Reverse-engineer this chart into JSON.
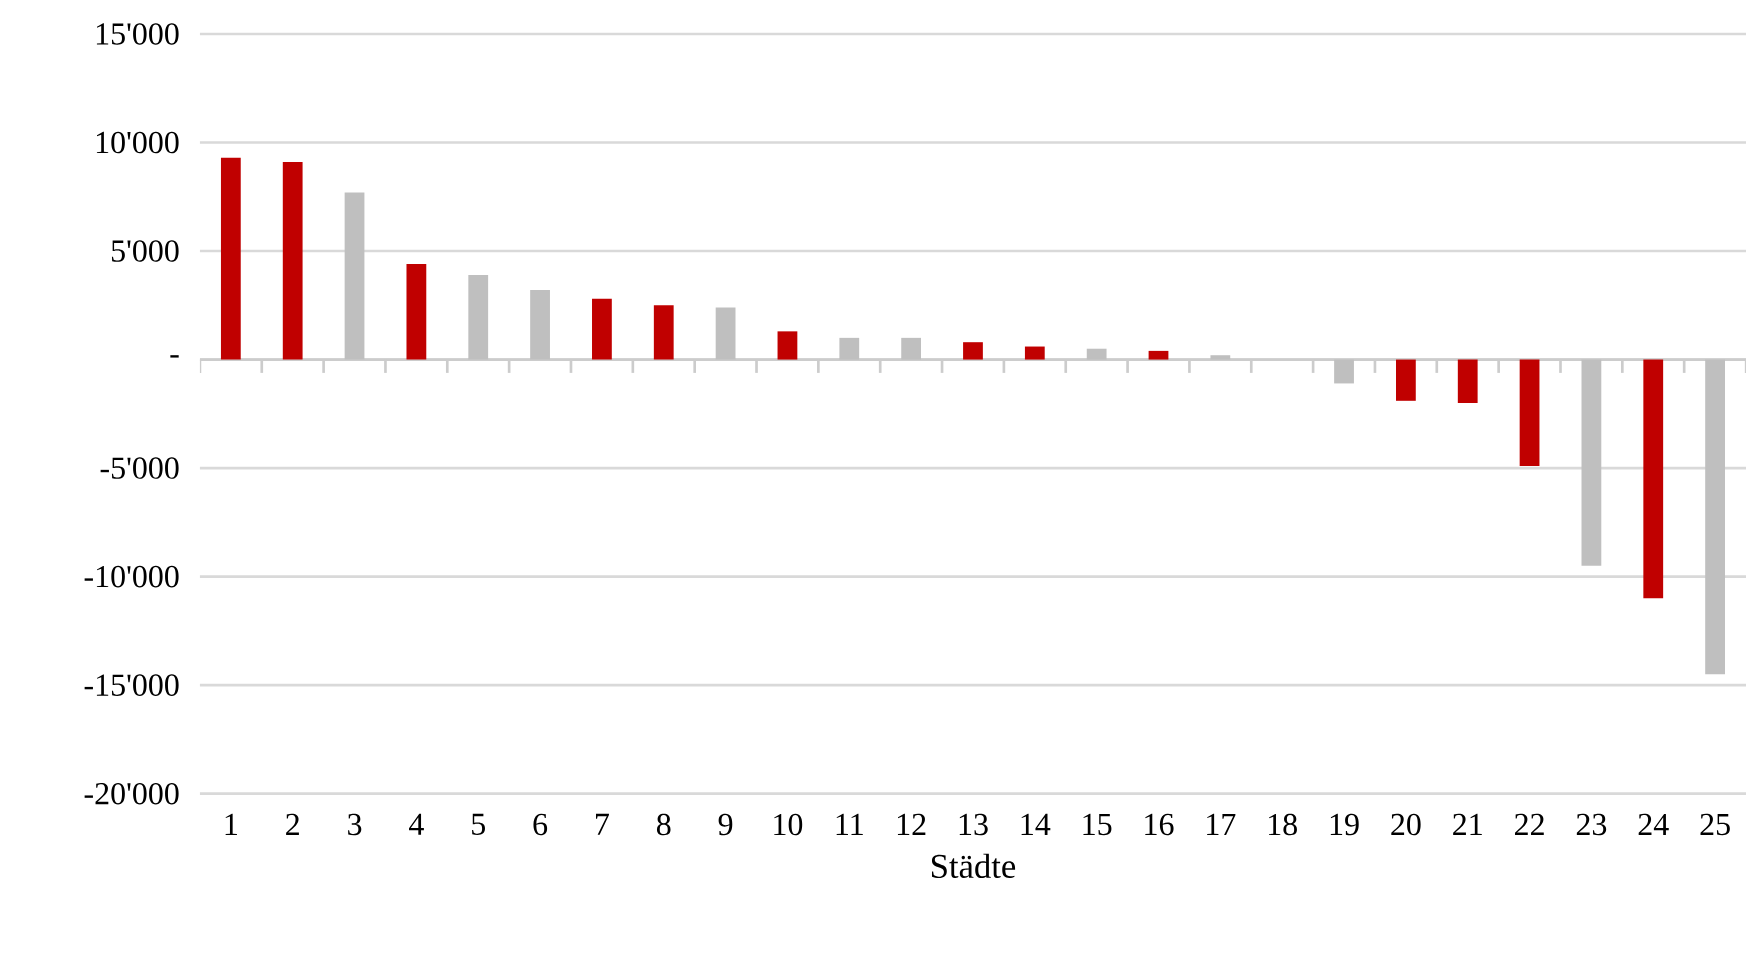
{
  "chart_data": {
    "type": "bar",
    "xlabel": "Städte",
    "categories": [
      "1",
      "2",
      "3",
      "4",
      "5",
      "6",
      "7",
      "8",
      "9",
      "10",
      "11",
      "12",
      "13",
      "14",
      "15",
      "16",
      "17",
      "18",
      "19",
      "20",
      "21",
      "22",
      "23",
      "24",
      "25"
    ],
    "values": [
      9300,
      9100,
      7700,
      4400,
      3900,
      3200,
      2800,
      2500,
      2400,
      1300,
      1000,
      1000,
      800,
      600,
      500,
      400,
      200,
      0,
      -1100,
      -1900,
      -2000,
      -4900,
      -9500,
      -11000,
      -14500
    ],
    "colors": [
      "#c00000",
      "#c00000",
      "#bfbfbf",
      "#c00000",
      "#bfbfbf",
      "#bfbfbf",
      "#c00000",
      "#c00000",
      "#bfbfbf",
      "#c00000",
      "#bfbfbf",
      "#bfbfbf",
      "#c00000",
      "#c00000",
      "#bfbfbf",
      "#c00000",
      "#bfbfbf",
      "#bfbfbf",
      "#bfbfbf",
      "#c00000",
      "#c00000",
      "#c00000",
      "#bfbfbf",
      "#c00000",
      "#bfbfbf"
    ],
    "ylim": [
      -20000,
      15000
    ],
    "yticks": [
      {
        "value": -20000,
        "label": "-20'000"
      },
      {
        "value": -15000,
        "label": "-15'000"
      },
      {
        "value": -10000,
        "label": "-10'000"
      },
      {
        "value": -5000,
        "label": "-5'000"
      },
      {
        "value": 0,
        "label": "-"
      },
      {
        "value": 5000,
        "label": "5'000"
      },
      {
        "value": 10000,
        "label": "10'000"
      },
      {
        "value": 15000,
        "label": "15'000"
      }
    ],
    "grid": "y"
  }
}
